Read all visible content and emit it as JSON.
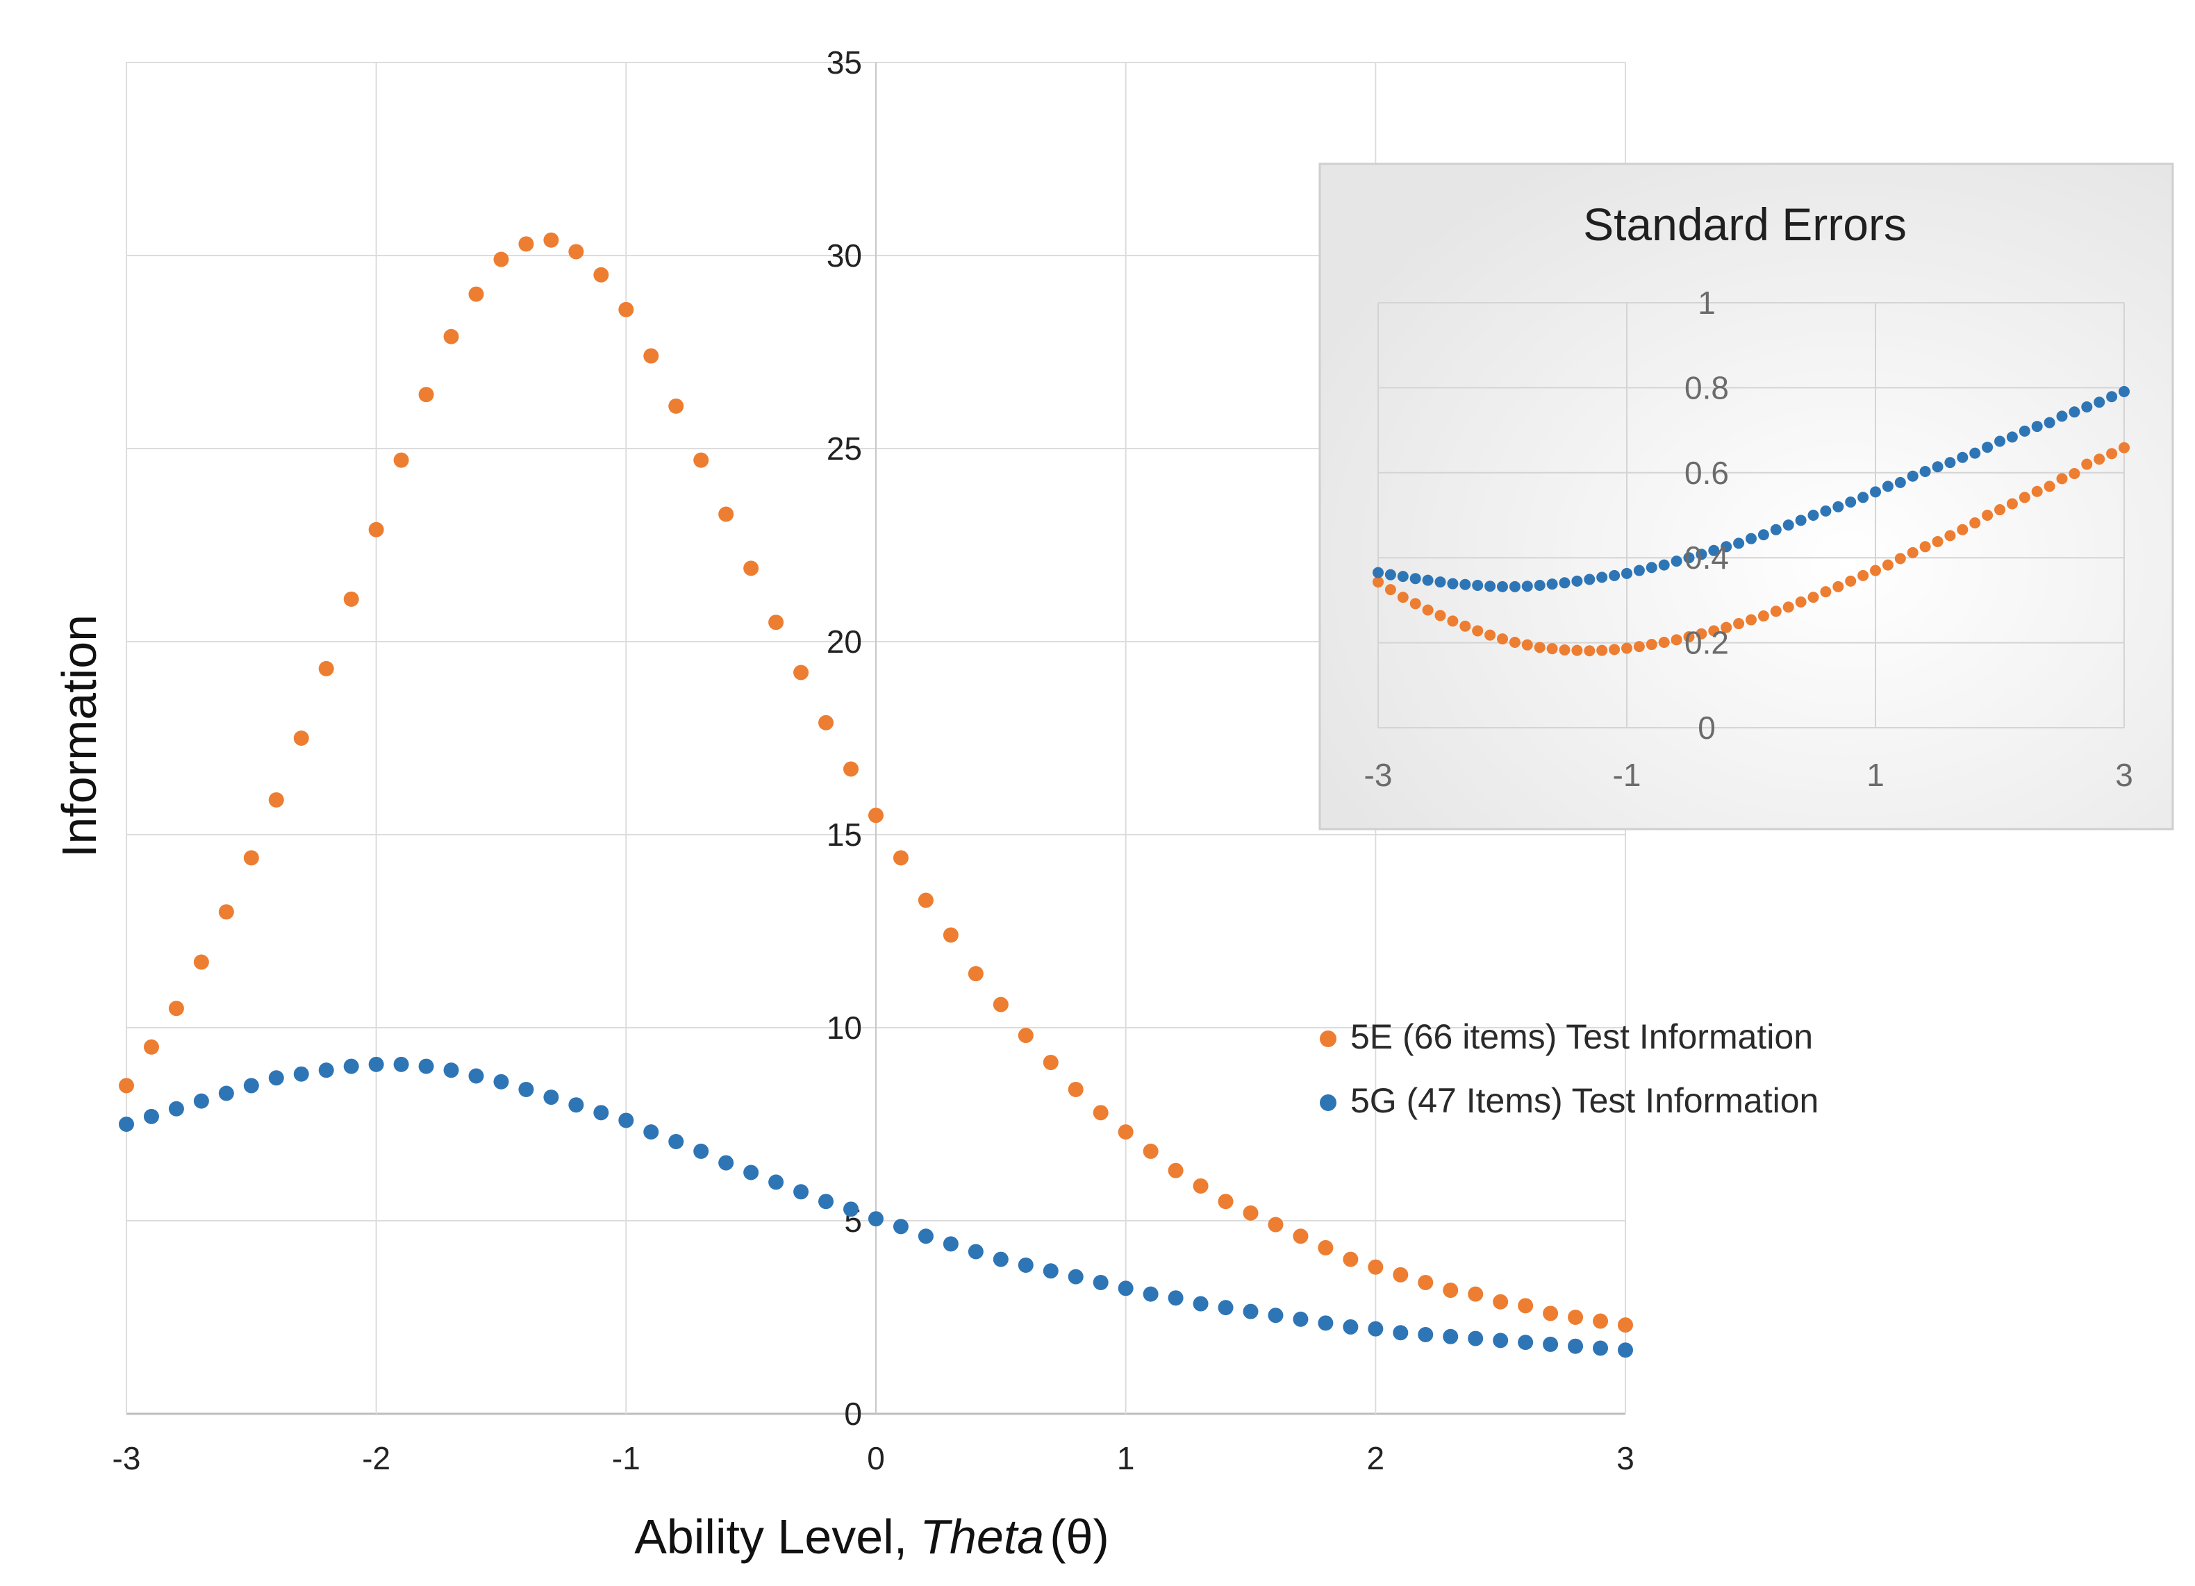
{
  "chart_data": [
    {
      "type": "scatter",
      "title": "",
      "xlabel_prefix": "Ability Level,",
      "xlabel_var": "Theta",
      "xlabel_symbol": "(θ)",
      "ylabel": "Information",
      "xlim": [
        -3,
        3
      ],
      "ylim": [
        0,
        35
      ],
      "x_ticks": [
        -3,
        -2,
        -1,
        0,
        1,
        2,
        3
      ],
      "y_ticks": [
        0,
        5,
        10,
        15,
        20,
        25,
        30,
        35
      ],
      "x_tick_labels": [
        "-3",
        "-2",
        "-1",
        "0",
        "1",
        "2",
        "3"
      ],
      "y_tick_labels": [
        "0",
        "5",
        "10",
        "15",
        "20",
        "25",
        "30",
        "35"
      ],
      "legend_placement": "right",
      "grid": true,
      "x": [
        -3.0,
        -2.9,
        -2.8,
        -2.7,
        -2.6,
        -2.5,
        -2.4,
        -2.3,
        -2.2,
        -2.1,
        -2.0,
        -1.9,
        -1.8,
        -1.7,
        -1.6,
        -1.5,
        -1.4,
        -1.3,
        -1.2,
        -1.1,
        -1.0,
        -0.9,
        -0.8,
        -0.7,
        -0.6,
        -0.5,
        -0.4,
        -0.3,
        -0.2,
        -0.1,
        0.0,
        0.1,
        0.2,
        0.3,
        0.4,
        0.5,
        0.6,
        0.7,
        0.8,
        0.9,
        1.0,
        1.1,
        1.2,
        1.3,
        1.4,
        1.5,
        1.6,
        1.7,
        1.8,
        1.9,
        2.0,
        2.1,
        2.2,
        2.3,
        2.4,
        2.5,
        2.6,
        2.7,
        2.8,
        2.9,
        3.0
      ],
      "series": [
        {
          "name": "5E (66 items) Test Information",
          "color": "#ED7D31",
          "values": [
            8.5,
            9.5,
            10.5,
            11.7,
            13.0,
            14.4,
            15.9,
            17.5,
            19.3,
            21.1,
            22.9,
            24.7,
            26.4,
            27.9,
            29.0,
            29.9,
            30.3,
            30.4,
            30.1,
            29.5,
            28.6,
            27.4,
            26.1,
            24.7,
            23.3,
            21.9,
            20.5,
            19.2,
            17.9,
            16.7,
            15.5,
            14.4,
            13.3,
            12.4,
            11.4,
            10.6,
            9.8,
            9.1,
            8.4,
            7.8,
            7.3,
            6.8,
            6.3,
            5.9,
            5.5,
            5.2,
            4.9,
            4.6,
            4.3,
            4.0,
            3.8,
            3.6,
            3.4,
            3.2,
            3.1,
            2.9,
            2.8,
            2.6,
            2.5,
            2.4,
            2.3
          ]
        },
        {
          "name": "5G (47 Items) Test Information",
          "color": "#2E75B6",
          "values": [
            7.5,
            7.7,
            7.9,
            8.1,
            8.3,
            8.5,
            8.7,
            8.8,
            8.9,
            9.0,
            9.05,
            9.05,
            9.0,
            8.9,
            8.75,
            8.6,
            8.4,
            8.2,
            8.0,
            7.8,
            7.6,
            7.3,
            7.05,
            6.8,
            6.5,
            6.25,
            6.0,
            5.75,
            5.5,
            5.3,
            5.05,
            4.85,
            4.6,
            4.4,
            4.2,
            4.0,
            3.85,
            3.7,
            3.55,
            3.4,
            3.25,
            3.1,
            3.0,
            2.85,
            2.75,
            2.65,
            2.55,
            2.45,
            2.35,
            2.25,
            2.2,
            2.1,
            2.05,
            2.0,
            1.95,
            1.9,
            1.85,
            1.8,
            1.75,
            1.7,
            1.65
          ]
        }
      ]
    },
    {
      "type": "scatter",
      "title": "Standard Errors",
      "xlim": [
        -3,
        3
      ],
      "ylim": [
        0,
        1
      ],
      "x_ticks": [
        -3,
        -1,
        1,
        3
      ],
      "y_ticks": [
        0,
        0.2,
        0.4,
        0.6,
        0.8,
        1
      ],
      "x_tick_labels": [
        "-3",
        "-1",
        "1",
        "3"
      ],
      "y_tick_labels": [
        "0",
        "0.2",
        "0.4",
        "0.6",
        "0.8",
        "1"
      ],
      "grid": true,
      "x": [
        -3.0,
        -2.9,
        -2.8,
        -2.7,
        -2.6,
        -2.5,
        -2.4,
        -2.3,
        -2.2,
        -2.1,
        -2.0,
        -1.9,
        -1.8,
        -1.7,
        -1.6,
        -1.5,
        -1.4,
        -1.3,
        -1.2,
        -1.1,
        -1.0,
        -0.9,
        -0.8,
        -0.7,
        -0.6,
        -0.5,
        -0.4,
        -0.3,
        -0.2,
        -0.1,
        0.0,
        0.1,
        0.2,
        0.3,
        0.4,
        0.5,
        0.6,
        0.7,
        0.8,
        0.9,
        1.0,
        1.1,
        1.2,
        1.3,
        1.4,
        1.5,
        1.6,
        1.7,
        1.8,
        1.9,
        2.0,
        2.1,
        2.2,
        2.3,
        2.4,
        2.5,
        2.6,
        2.7,
        2.8,
        2.9,
        3.0
      ],
      "series": [
        {
          "name": "5E",
          "color": "#ED7D31",
          "values": [
            0.343,
            0.325,
            0.307,
            0.292,
            0.277,
            0.264,
            0.251,
            0.239,
            0.228,
            0.218,
            0.209,
            0.201,
            0.195,
            0.189,
            0.186,
            0.183,
            0.182,
            0.181,
            0.182,
            0.184,
            0.187,
            0.191,
            0.196,
            0.201,
            0.207,
            0.214,
            0.221,
            0.228,
            0.236,
            0.245,
            0.254,
            0.263,
            0.274,
            0.284,
            0.296,
            0.307,
            0.32,
            0.332,
            0.345,
            0.358,
            0.37,
            0.383,
            0.398,
            0.412,
            0.426,
            0.438,
            0.452,
            0.466,
            0.482,
            0.5,
            0.513,
            0.527,
            0.542,
            0.556,
            0.568,
            0.586,
            0.598,
            0.62,
            0.632,
            0.645,
            0.659
          ]
        },
        {
          "name": "5G",
          "color": "#2E75B6",
          "values": [
            0.365,
            0.36,
            0.356,
            0.351,
            0.347,
            0.343,
            0.339,
            0.337,
            0.335,
            0.333,
            0.332,
            0.332,
            0.333,
            0.335,
            0.338,
            0.341,
            0.345,
            0.349,
            0.354,
            0.358,
            0.363,
            0.37,
            0.377,
            0.383,
            0.392,
            0.4,
            0.408,
            0.417,
            0.426,
            0.434,
            0.445,
            0.454,
            0.466,
            0.477,
            0.488,
            0.5,
            0.51,
            0.52,
            0.531,
            0.542,
            0.555,
            0.568,
            0.577,
            0.592,
            0.603,
            0.614,
            0.624,
            0.636,
            0.646,
            0.66,
            0.674,
            0.684,
            0.698,
            0.709,
            0.718,
            0.733,
            0.743,
            0.755,
            0.766,
            0.779,
            0.791
          ]
        }
      ]
    }
  ]
}
